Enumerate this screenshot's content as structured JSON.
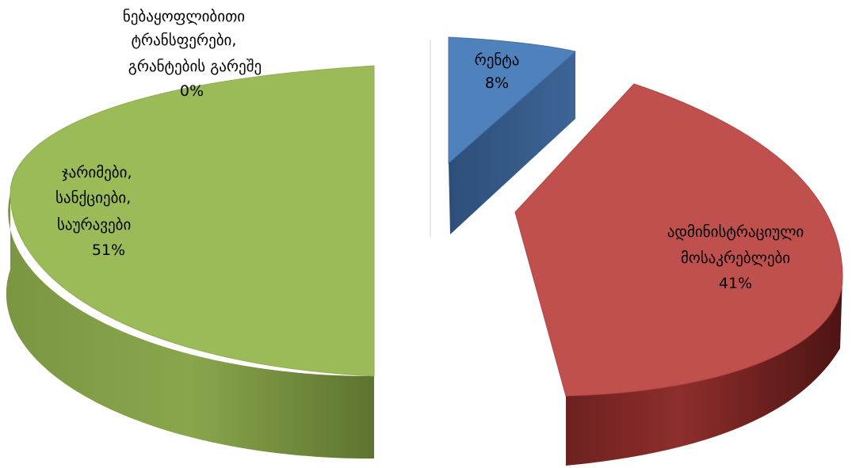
{
  "chart_data": {
    "type": "pie",
    "style": "3d-exploded",
    "slices": [
      {
        "label": "ადმინისტრაციული მოსაკრებლები",
        "value": 41,
        "display": "41%",
        "color": "#c0504d"
      },
      {
        "label": "ჯარიმები, სანქციები, საურავები",
        "value": 51,
        "display": "51%",
        "color": "#9bbb59"
      },
      {
        "label": "ნებაყოფლიბითი ტრანსფერები, გრანტების გარეშე",
        "value": 0,
        "display": "0%",
        "color": "#9bbb59"
      },
      {
        "label": "რენტა",
        "value": 8,
        "display": "8%",
        "color": "#4f81bd"
      }
    ]
  },
  "labels": {
    "admin": [
      "ადმინისტრაციული",
      "მოსაკრებლები",
      "41%"
    ],
    "fines": [
      "ჯარიმები,",
      "სანქციები,",
      "საურავები",
      "51%"
    ],
    "transfers": [
      "ნებაყოფლიბითი",
      "ტრანსფერები,",
      "გრანტების გარეშე",
      "0%"
    ],
    "rent": [
      "რენტა",
      "8%"
    ]
  }
}
